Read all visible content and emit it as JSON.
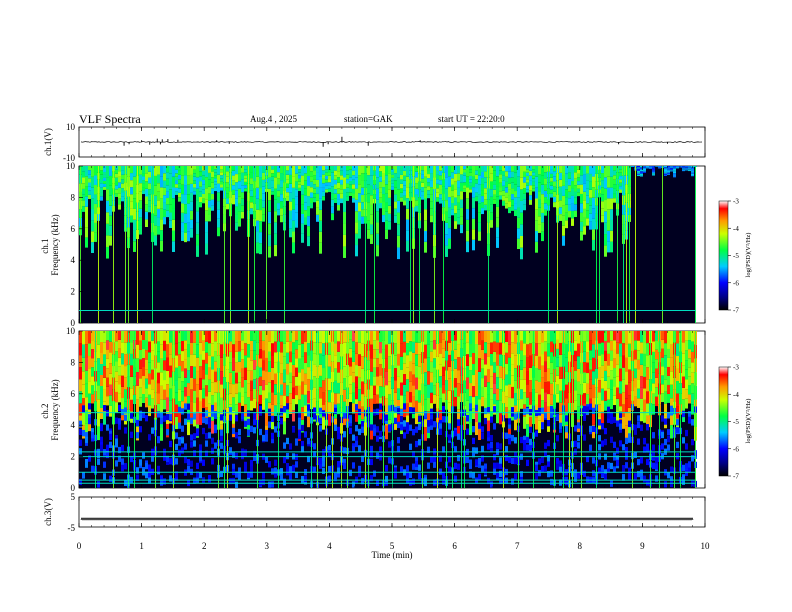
{
  "header": {
    "title": "VLF Spectra",
    "date": "Aug.4 , 2025",
    "station": "station=GAK",
    "start_ut": "start UT = 22:20:0"
  },
  "chart_data": [
    {
      "type": "line",
      "panel": "ch1-waveform",
      "ylabel": "ch.1(V)",
      "ylim": [
        -10,
        10
      ],
      "yticks": [
        "10",
        "-10"
      ],
      "xlim": [
        0,
        10
      ],
      "baseline": 0,
      "spikes": [
        {
          "x": 0.72,
          "y": -2.5
        },
        {
          "x": 0.8,
          "y": -1.5
        },
        {
          "x": 1.0,
          "y": 1.2
        },
        {
          "x": 1.13,
          "y": -1.8
        },
        {
          "x": 1.25,
          "y": 2.2
        },
        {
          "x": 1.3,
          "y": -1.6
        },
        {
          "x": 1.33,
          "y": 1.8
        },
        {
          "x": 1.42,
          "y": 2.0
        },
        {
          "x": 1.58,
          "y": 1.5
        },
        {
          "x": 2.2,
          "y": 1.2
        },
        {
          "x": 2.4,
          "y": -1.2
        },
        {
          "x": 3.9,
          "y": -3.2
        },
        {
          "x": 3.98,
          "y": -1.5
        },
        {
          "x": 4.2,
          "y": 3.5
        },
        {
          "x": 4.62,
          "y": -2.5
        },
        {
          "x": 5.45,
          "y": 1.2
        },
        {
          "x": 8.62,
          "y": -1.5
        },
        {
          "x": 9.4,
          "y": -1.2
        }
      ]
    },
    {
      "type": "heatmap",
      "panel": "ch1-spectrogram",
      "ylabel": "ch.1\nFrequency (kHz)",
      "xlim": [
        0,
        9.85
      ],
      "ylim": [
        0,
        10
      ],
      "yticks": [
        "0",
        "2",
        "4",
        "6",
        "8",
        "10"
      ],
      "colorbar": {
        "label": "log(PSD)(V²/Hz)",
        "min": -7,
        "max": -3,
        "ticks": [
          "-3",
          "-4",
          "-5",
          "-6",
          "-7"
        ]
      },
      "features": {
        "broadband_floor_kHz": 8.5,
        "noise_line_kHz": 0.8,
        "quiet_after_min": 8.8
      }
    },
    {
      "type": "heatmap",
      "panel": "ch2-spectrogram",
      "ylabel": "ch.2\nFrequency (kHz)",
      "xlim": [
        0,
        9.85
      ],
      "ylim": [
        0,
        10
      ],
      "yticks": [
        "0",
        "2",
        "4",
        "6",
        "8",
        "10"
      ],
      "colorbar": {
        "label": "log(PSD)(V²/Hz)",
        "min": -7,
        "max": -3,
        "ticks": [
          "-3",
          "-4",
          "-5",
          "-6",
          "-7"
        ]
      },
      "features": {
        "strong_band_kHz": [
          5.5,
          10
        ],
        "weak_band_kHz": [
          0,
          5
        ],
        "noise_lines_kHz": [
          0.3,
          0.5,
          1.0,
          2.0,
          2.3,
          4.8
        ]
      }
    },
    {
      "type": "line",
      "panel": "ch3-waveform",
      "ylabel": "ch.3(V)",
      "ylim": [
        -5,
        5
      ],
      "yticks": [
        "5",
        "-5"
      ],
      "xlim": [
        0,
        10
      ],
      "baseline": -2.3
    }
  ],
  "time_axis": {
    "xlabel": "Time (min)",
    "xticks": [
      "0",
      "1",
      "2",
      "3",
      "4",
      "5",
      "6",
      "7",
      "8",
      "9",
      "10"
    ]
  },
  "colors": {
    "waveform": "#000000",
    "spectrogram_background": "#000020"
  }
}
